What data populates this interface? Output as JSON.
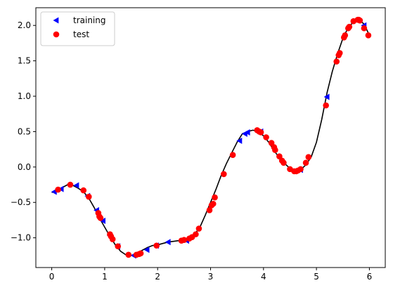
{
  "chart_data": {
    "type": "scatter",
    "xlim": [
      -0.3,
      6.3
    ],
    "ylim": [
      -1.42,
      2.25
    ],
    "x_ticks": [
      0,
      1,
      2,
      3,
      4,
      5,
      6
    ],
    "y_ticks": [
      -1.0,
      -0.5,
      0.0,
      0.5,
      1.0,
      1.5,
      2.0
    ],
    "y_tick_labels": [
      "−1.0",
      "−0.5",
      "0.0",
      "0.5",
      "1.0",
      "1.5",
      "2.0"
    ],
    "grid": false,
    "legend_position": "upper-left",
    "curve": {
      "color": "#000000",
      "x": [
        0.0,
        0.1,
        0.2,
        0.3,
        0.4,
        0.5,
        0.6,
        0.7,
        0.8,
        0.9,
        1.0,
        1.1,
        1.2,
        1.3,
        1.4,
        1.5,
        1.6,
        1.7,
        1.8,
        1.9,
        2.0,
        2.1,
        2.2,
        2.3,
        2.4,
        2.5,
        2.6,
        2.7,
        2.8,
        2.9,
        3.0,
        3.1,
        3.2,
        3.3,
        3.4,
        3.5,
        3.6,
        3.7,
        3.8,
        3.9,
        4.0,
        4.1,
        4.2,
        4.3,
        4.4,
        4.5,
        4.6,
        4.7,
        4.8,
        4.9,
        5.0,
        5.1,
        5.2,
        5.3,
        5.4,
        5.5,
        5.6,
        5.7,
        5.8,
        5.9,
        6.0
      ],
      "y": [
        -0.36,
        -0.33,
        -0.29,
        -0.25,
        -0.26,
        -0.3,
        -0.35,
        -0.44,
        -0.57,
        -0.72,
        -0.85,
        -0.98,
        -1.1,
        -1.19,
        -1.24,
        -1.25,
        -1.22,
        -1.18,
        -1.14,
        -1.11,
        -1.1,
        -1.08,
        -1.06,
        -1.05,
        -1.04,
        -1.02,
        -1.0,
        -0.95,
        -0.85,
        -0.68,
        -0.5,
        -0.32,
        -0.12,
        0.05,
        0.2,
        0.35,
        0.47,
        0.5,
        0.52,
        0.5,
        0.44,
        0.35,
        0.23,
        0.13,
        0.05,
        -0.02,
        -0.05,
        -0.04,
        0.03,
        0.14,
        0.35,
        0.67,
        1.05,
        1.35,
        1.6,
        1.82,
        1.97,
        2.05,
        2.08,
        2.02,
        1.86
      ]
    },
    "series": [
      {
        "name": "training",
        "marker": "triangle-left",
        "color": "#0000ff",
        "points": [
          [
            0.05,
            -0.35
          ],
          [
            0.18,
            -0.31
          ],
          [
            0.47,
            -0.26
          ],
          [
            0.68,
            -0.41
          ],
          [
            0.85,
            -0.61
          ],
          [
            0.97,
            -0.76
          ],
          [
            1.1,
            -0.97
          ],
          [
            1.25,
            -1.12
          ],
          [
            1.55,
            -1.25
          ],
          [
            1.8,
            -1.17
          ],
          [
            1.98,
            -1.11
          ],
          [
            2.2,
            -1.06
          ],
          [
            2.55,
            -1.04
          ],
          [
            3.55,
            0.37
          ],
          [
            3.65,
            0.47
          ],
          [
            3.7,
            0.49
          ],
          [
            3.95,
            0.5
          ],
          [
            4.7,
            -0.04
          ],
          [
            5.2,
            0.99
          ],
          [
            5.9,
            2.0
          ]
        ]
      },
      {
        "name": "test",
        "marker": "circle",
        "color": "#ff0000",
        "points": [
          [
            0.12,
            -0.32
          ],
          [
            0.35,
            -0.25
          ],
          [
            0.6,
            -0.33
          ],
          [
            0.7,
            -0.42
          ],
          [
            0.88,
            -0.65
          ],
          [
            0.9,
            -0.7
          ],
          [
            0.92,
            -0.72
          ],
          [
            1.1,
            -0.95
          ],
          [
            1.12,
            -0.98
          ],
          [
            1.15,
            -1.02
          ],
          [
            1.25,
            -1.12
          ],
          [
            1.45,
            -1.24
          ],
          [
            1.6,
            -1.24
          ],
          [
            1.65,
            -1.23
          ],
          [
            1.68,
            -1.22
          ],
          [
            1.98,
            -1.11
          ],
          [
            2.45,
            -1.04
          ],
          [
            2.5,
            -1.03
          ],
          [
            2.6,
            -1.01
          ],
          [
            2.65,
            -0.99
          ],
          [
            2.72,
            -0.95
          ],
          [
            2.78,
            -0.87
          ],
          [
            2.98,
            -0.61
          ],
          [
            3.02,
            -0.54
          ],
          [
            3.05,
            -0.52
          ],
          [
            3.08,
            -0.43
          ],
          [
            3.25,
            -0.1
          ],
          [
            3.42,
            0.17
          ],
          [
            3.88,
            0.52
          ],
          [
            3.92,
            0.5
          ],
          [
            3.95,
            0.49
          ],
          [
            4.05,
            0.42
          ],
          [
            4.15,
            0.34
          ],
          [
            4.2,
            0.28
          ],
          [
            4.22,
            0.24
          ],
          [
            4.3,
            0.15
          ],
          [
            4.35,
            0.09
          ],
          [
            4.38,
            0.06
          ],
          [
            4.5,
            -0.03
          ],
          [
            4.58,
            -0.06
          ],
          [
            4.62,
            -0.06
          ],
          [
            4.65,
            -0.05
          ],
          [
            4.7,
            -0.03
          ],
          [
            4.8,
            0.06
          ],
          [
            4.85,
            0.14
          ],
          [
            5.18,
            0.87
          ],
          [
            5.38,
            1.49
          ],
          [
            5.42,
            1.58
          ],
          [
            5.44,
            1.61
          ],
          [
            5.52,
            1.83
          ],
          [
            5.54,
            1.86
          ],
          [
            5.6,
            1.96
          ],
          [
            5.62,
            1.98
          ],
          [
            5.7,
            2.06
          ],
          [
            5.78,
            2.08
          ],
          [
            5.8,
            2.08
          ],
          [
            5.82,
            2.07
          ],
          [
            5.9,
            1.96
          ],
          [
            5.98,
            1.86
          ]
        ]
      }
    ]
  }
}
